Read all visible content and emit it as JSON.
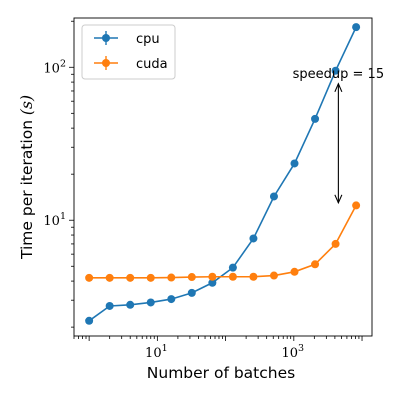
{
  "chart_data": {
    "type": "line",
    "title": "",
    "xlabel": "Number of batches",
    "ylabel": "Time per iteration (s)",
    "ylabel_parts": {
      "text": "Time per iteration ",
      "unit": "(s)"
    },
    "xscale": "log",
    "yscale": "log",
    "xlim": [
      0.6,
      14000
    ],
    "ylim": [
      1.75,
      210
    ],
    "grid": false,
    "legend_position": "upper-left",
    "x_tick_labels": [
      {
        "value": 10,
        "base": "10",
        "exp": "1"
      },
      {
        "value": 1000,
        "base": "10",
        "exp": "3"
      }
    ],
    "y_tick_labels": [
      {
        "value": 10,
        "base": "10",
        "exp": "1"
      },
      {
        "value": 100,
        "base": "10",
        "exp": "2"
      }
    ],
    "x": [
      1,
      2,
      4,
      8,
      16,
      32,
      64,
      128,
      256,
      512,
      1024,
      2048,
      4096,
      8192
    ],
    "series": [
      {
        "name": "cpu",
        "color": "#1f77b4",
        "values": [
          2.2,
          2.75,
          2.8,
          2.9,
          3.05,
          3.35,
          3.9,
          4.9,
          7.6,
          14.3,
          23.5,
          46,
          95,
          183
        ]
      },
      {
        "name": "cuda",
        "color": "#ff7f0e",
        "values": [
          4.2,
          4.2,
          4.2,
          4.2,
          4.22,
          4.25,
          4.27,
          4.27,
          4.27,
          4.35,
          4.6,
          5.15,
          7.0,
          12.5
        ]
      }
    ],
    "annotations": [
      {
        "text": "speedup = 15",
        "type": "double-arrow",
        "x": 4500,
        "y_from": 13,
        "y_to": 78
      }
    ]
  }
}
